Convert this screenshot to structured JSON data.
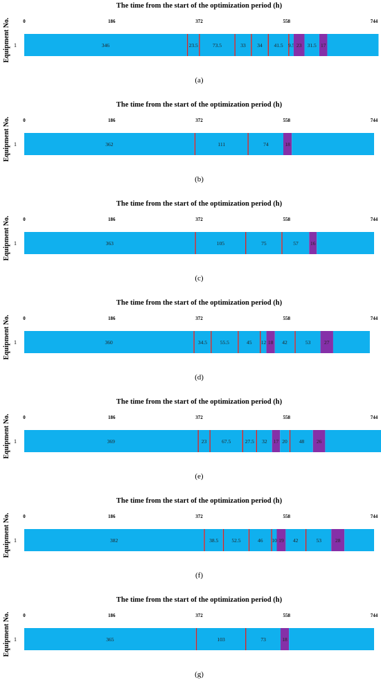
{
  "colors": {
    "run": "#10b0ee",
    "repair": "#e02020",
    "maintenance": "#8530a8"
  },
  "chart_data": [
    {
      "type": "gantt",
      "title": "The time from the start of the optimization period (h)",
      "ylabel": "Equipment No.",
      "row_label": "1",
      "x_ticks": [
        "0",
        "186",
        "372",
        "558",
        "744"
      ],
      "xlim": [
        0,
        744
      ],
      "caption": "(a)",
      "segments": [
        {
          "kind": "run",
          "value": 346,
          "label": "346"
        },
        {
          "kind": "repair",
          "value": 2
        },
        {
          "kind": "run",
          "value": 23.5,
          "label": "23.5"
        },
        {
          "kind": "repair",
          "value": 2
        },
        {
          "kind": "run",
          "value": 73.5,
          "label": "73.5"
        },
        {
          "kind": "repair",
          "value": 2
        },
        {
          "kind": "run",
          "value": 33,
          "label": "33"
        },
        {
          "kind": "repair",
          "value": 2
        },
        {
          "kind": "run",
          "value": 34,
          "label": "34"
        },
        {
          "kind": "repair",
          "value": 2
        },
        {
          "kind": "run",
          "value": 41.5,
          "label": "41.5"
        },
        {
          "kind": "repair",
          "value": 2
        },
        {
          "kind": "run",
          "value": 9.5,
          "label": "9.5"
        },
        {
          "kind": "maintenance",
          "value": 23,
          "label": "23"
        },
        {
          "kind": "run",
          "value": 31.5,
          "label": "31.5"
        },
        {
          "kind": "maintenance",
          "value": 17,
          "label": "17"
        },
        {
          "kind": "run",
          "value": 109
        }
      ]
    },
    {
      "type": "gantt",
      "title": "The time from the start of the optimization period (h)",
      "ylabel": "Equipment No.",
      "row_label": "1",
      "x_ticks": [
        "0",
        "186",
        "372",
        "558",
        "744"
      ],
      "xlim": [
        0,
        744
      ],
      "caption": "(b)",
      "segments": [
        {
          "kind": "run",
          "value": 362,
          "label": "362"
        },
        {
          "kind": "repair",
          "value": 2
        },
        {
          "kind": "run",
          "value": 111,
          "label": "111"
        },
        {
          "kind": "repair",
          "value": 2
        },
        {
          "kind": "run",
          "value": 74,
          "label": "74"
        },
        {
          "kind": "maintenance",
          "value": 18,
          "label": "18"
        },
        {
          "kind": "run",
          "value": 175
        }
      ]
    },
    {
      "type": "gantt",
      "title": "The time from the start of the optimization period (h)",
      "ylabel": "Equipment No.",
      "row_label": "1",
      "x_ticks": [
        "0",
        "186",
        "372",
        "558",
        "744"
      ],
      "xlim": [
        0,
        744
      ],
      "caption": "(c)",
      "segments": [
        {
          "kind": "run",
          "value": 363,
          "label": "363"
        },
        {
          "kind": "repair",
          "value": 2
        },
        {
          "kind": "run",
          "value": 105,
          "label": "105"
        },
        {
          "kind": "repair",
          "value": 2
        },
        {
          "kind": "run",
          "value": 75,
          "label": "75"
        },
        {
          "kind": "repair",
          "value": 2
        },
        {
          "kind": "run",
          "value": 57,
          "label": "57"
        },
        {
          "kind": "maintenance",
          "value": 16,
          "label": "16"
        },
        {
          "kind": "run",
          "value": 122
        }
      ]
    },
    {
      "type": "gantt",
      "title": "The time from the start of the optimization period (h)",
      "ylabel": "Equipment No.",
      "row_label": "1",
      "x_ticks": [
        "0",
        "186",
        "372",
        "558",
        "744"
      ],
      "xlim": [
        0,
        744
      ],
      "caption": "(d)",
      "segments": [
        {
          "kind": "run",
          "value": 360,
          "label": "360"
        },
        {
          "kind": "repair",
          "value": 2
        },
        {
          "kind": "run",
          "value": 34.5,
          "label": "34.5"
        },
        {
          "kind": "repair",
          "value": 2
        },
        {
          "kind": "run",
          "value": 55.5,
          "label": "55.5"
        },
        {
          "kind": "repair",
          "value": 2
        },
        {
          "kind": "run",
          "value": 45,
          "label": "45"
        },
        {
          "kind": "repair",
          "value": 2
        },
        {
          "kind": "run",
          "value": 12,
          "label": "12"
        },
        {
          "kind": "maintenance",
          "value": 18,
          "label": "18"
        },
        {
          "kind": "run",
          "value": 42,
          "label": "42"
        },
        {
          "kind": "repair",
          "value": 2
        },
        {
          "kind": "run",
          "value": 53,
          "label": "53"
        },
        {
          "kind": "maintenance",
          "value": 27,
          "label": "27"
        },
        {
          "kind": "run",
          "value": 78
        }
      ]
    },
    {
      "type": "gantt",
      "title": "The time from the start of the optimization period (h)",
      "ylabel": "Equipment No.",
      "row_label": "1",
      "x_ticks": [
        "0",
        "186",
        "372",
        "558",
        "744"
      ],
      "xlim": [
        0,
        744
      ],
      "caption": "(e)",
      "segments": [
        {
          "kind": "run",
          "value": 369,
          "label": "369"
        },
        {
          "kind": "repair",
          "value": 2
        },
        {
          "kind": "run",
          "value": 23,
          "label": "23"
        },
        {
          "kind": "repair",
          "value": 2
        },
        {
          "kind": "run",
          "value": 67.5,
          "label": "67.5"
        },
        {
          "kind": "repair",
          "value": 2
        },
        {
          "kind": "run",
          "value": 27.5,
          "label": "27.5"
        },
        {
          "kind": "repair",
          "value": 2
        },
        {
          "kind": "run",
          "value": 32,
          "label": "32"
        },
        {
          "kind": "maintenance",
          "value": 17,
          "label": "17"
        },
        {
          "kind": "run",
          "value": 20,
          "label": "20"
        },
        {
          "kind": "repair",
          "value": 2
        },
        {
          "kind": "run",
          "value": 48,
          "label": "48"
        },
        {
          "kind": "maintenance",
          "value": 26,
          "label": "26"
        },
        {
          "kind": "run",
          "value": 123
        }
      ]
    },
    {
      "type": "gantt",
      "title": "The time from the start of the optimization period (h)",
      "ylabel": "Equipment No.",
      "row_label": "1",
      "x_ticks": [
        "0",
        "186",
        "372",
        "558",
        "744"
      ],
      "xlim": [
        0,
        744
      ],
      "caption": "(f)",
      "segments": [
        {
          "kind": "run",
          "value": 382,
          "label": "382"
        },
        {
          "kind": "repair",
          "value": 2
        },
        {
          "kind": "run",
          "value": 38.5,
          "label": "38.5"
        },
        {
          "kind": "repair",
          "value": 2
        },
        {
          "kind": "run",
          "value": 52.5,
          "label": "52.5"
        },
        {
          "kind": "repair",
          "value": 2
        },
        {
          "kind": "run",
          "value": 46,
          "label": "46"
        },
        {
          "kind": "repair",
          "value": 2
        },
        {
          "kind": "run",
          "value": 10,
          "label": "10"
        },
        {
          "kind": "maintenance",
          "value": 19,
          "label": "19"
        },
        {
          "kind": "run",
          "value": 42,
          "label": "42"
        },
        {
          "kind": "repair",
          "value": 2
        },
        {
          "kind": "run",
          "value": 53,
          "label": "53"
        },
        {
          "kind": "maintenance",
          "value": 28,
          "label": "28"
        },
        {
          "kind": "run",
          "value": 63
        }
      ]
    },
    {
      "type": "gantt",
      "title": "The time from the start of the optimization period (h)",
      "ylabel": "Equipment No.",
      "row_label": "1",
      "x_ticks": [
        "0",
        "186",
        "372",
        "558",
        "744"
      ],
      "xlim": [
        0,
        744
      ],
      "caption": "(g)",
      "segments": [
        {
          "kind": "run",
          "value": 365,
          "label": "365"
        },
        {
          "kind": "repair",
          "value": 2
        },
        {
          "kind": "run",
          "value": 103,
          "label": "103"
        },
        {
          "kind": "repair",
          "value": 2
        },
        {
          "kind": "run",
          "value": 73,
          "label": "73"
        },
        {
          "kind": "maintenance",
          "value": 18,
          "label": "18"
        },
        {
          "kind": "run",
          "value": 181
        }
      ]
    }
  ]
}
